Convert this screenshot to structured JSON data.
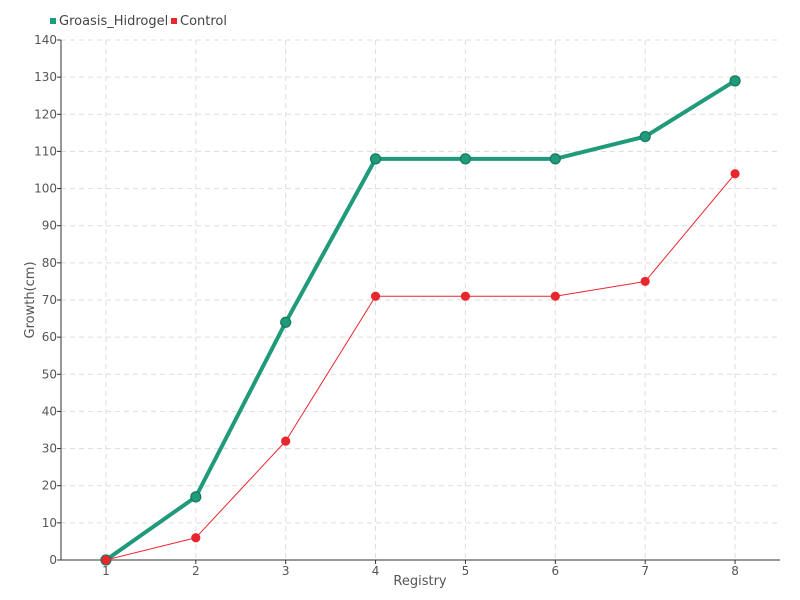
{
  "chart_data": {
    "type": "line",
    "xlabel": "Registry",
    "ylabel": "Growth(cm)",
    "x": [
      1,
      2,
      3,
      4,
      5,
      6,
      7,
      8
    ],
    "xlim": [
      0.5,
      8.5
    ],
    "ylim": [
      0,
      140
    ],
    "y_ticks": [
      0,
      10,
      20,
      30,
      40,
      50,
      60,
      70,
      80,
      90,
      100,
      110,
      120,
      130,
      140
    ],
    "grid": true,
    "legend_position": "top-left",
    "series": [
      {
        "name": "Groasis_Hidrogel",
        "color": "#1f9a7a",
        "values": [
          0,
          17,
          64,
          108,
          108,
          108,
          114,
          129
        ]
      },
      {
        "name": "Control",
        "color": "#e8262e",
        "values": [
          0,
          6,
          32,
          71,
          71,
          71,
          75,
          104
        ]
      }
    ]
  }
}
